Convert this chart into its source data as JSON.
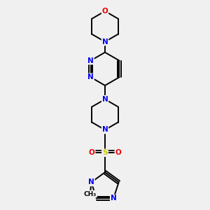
{
  "bg_color": "#f0f0f0",
  "bond_color": "#000000",
  "N_color": "#0000ee",
  "O_color": "#ee0000",
  "S_color": "#cccc00",
  "line_width": 1.4,
  "figsize": [
    3.0,
    3.0
  ],
  "dpi": 100,
  "xlim": [
    0.2,
    0.8
  ],
  "ylim": [
    0.02,
    1.0
  ]
}
